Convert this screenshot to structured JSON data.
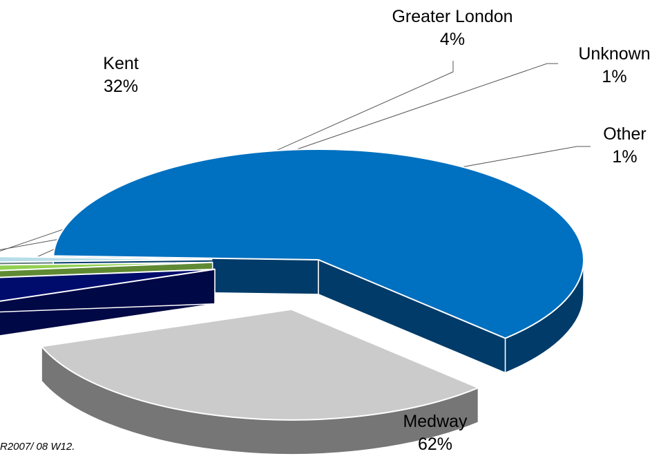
{
  "chart_data": {
    "type": "pie",
    "variant": "3d-exploded",
    "slices": [
      {
        "label": "Medway",
        "percent_label": "62%",
        "value": 62,
        "color": "#0070C0",
        "side_color": "#003B69"
      },
      {
        "label": "Kent",
        "percent_label": "32%",
        "value": 32,
        "color": "#CBCBCB",
        "side_color": "#767676"
      },
      {
        "label": "Greater London",
        "percent_label": "4%",
        "value": 4,
        "color": "#000C6B",
        "side_color": "#000845"
      },
      {
        "label": "Unknown",
        "percent_label": "1%",
        "value": 1,
        "color": "#92D050",
        "side_color": "#5F8A33"
      },
      {
        "label": "Other",
        "percent_label": "1%",
        "value": 1,
        "color": "#B7DDE8",
        "side_color": "#637D7F"
      }
    ],
    "legend": "none",
    "data_labels": "outside with leader lines"
  },
  "footnote": "R2007/ 08 W12."
}
